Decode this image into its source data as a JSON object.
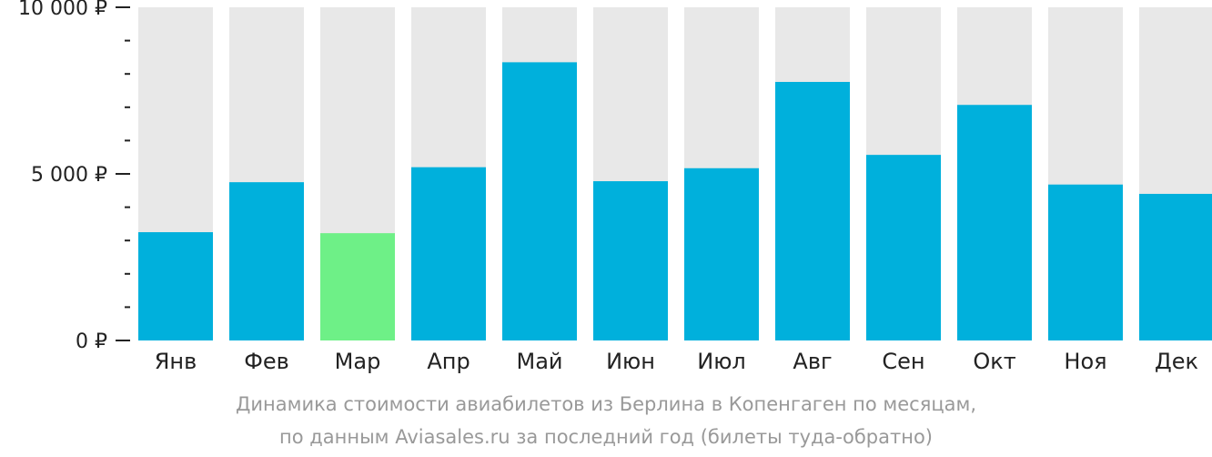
{
  "chart_data": {
    "type": "bar",
    "categories": [
      "Янв",
      "Фев",
      "Мар",
      "Апр",
      "Май",
      "Июн",
      "Июл",
      "Авг",
      "Сен",
      "Окт",
      "Ноя",
      "Дек"
    ],
    "values": [
      3250,
      4750,
      3220,
      5200,
      8350,
      4780,
      5170,
      7760,
      5570,
      7070,
      4680,
      4400
    ],
    "highlighted_category": "Мар",
    "ylim": [
      0,
      10000
    ],
    "yticks": [
      {
        "value": 0,
        "label": "0 ₽"
      },
      {
        "value": 5000,
        "label": "5 000 ₽"
      },
      {
        "value": 10000,
        "label": "10 000 ₽"
      }
    ],
    "minor_tick_step": 1000,
    "colors": {
      "bar": "#00b0dc",
      "highlight": "#6ef087",
      "background_bar": "#e8e8e8",
      "axis": "#222222"
    },
    "caption": [
      "Динамика стоимости авиабилетов из Берлина в Копенгаген по месяцам,",
      "по данным Aviasales.ru за последний год (билеты туда-обратно)"
    ]
  }
}
